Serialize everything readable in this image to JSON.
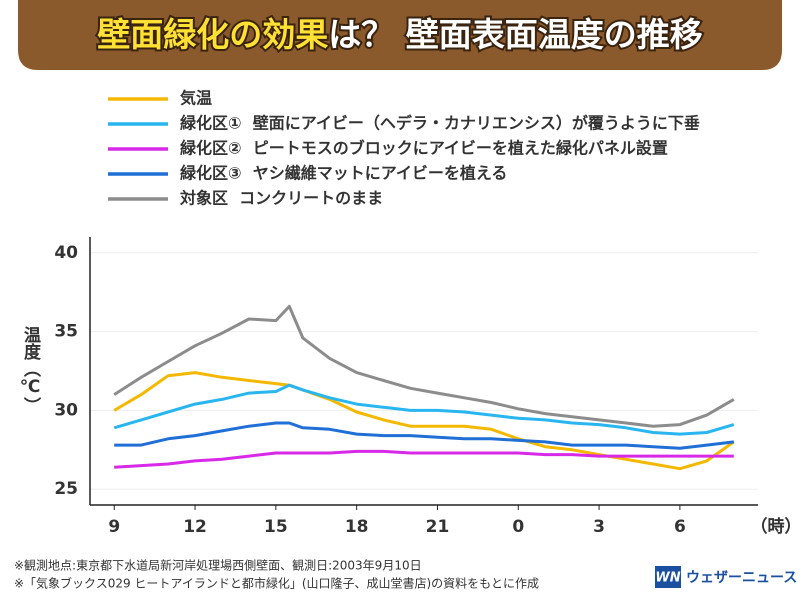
{
  "chart_data": {
    "type": "line",
    "title": {
      "highlight": "壁面緑化の効果",
      "rest": "は？ 壁面表面温度の推移"
    },
    "y_label": "温度（℃）",
    "x_unit": "（時）",
    "x": [
      9,
      10,
      11,
      12,
      13,
      14,
      15,
      15.5,
      16,
      17,
      18,
      19,
      20,
      21,
      22,
      23,
      24,
      25,
      26,
      27,
      28,
      29,
      30,
      31,
      32
    ],
    "xlim": [
      8.1,
      32.9
    ],
    "xticks": [
      9,
      12,
      15,
      18,
      21,
      {
        "value": 24,
        "label": "0"
      },
      {
        "value": 27,
        "label": "3"
      },
      {
        "value": 30,
        "label": "6"
      }
    ],
    "ylim": [
      24,
      41
    ],
    "yticks": [
      25,
      30,
      35,
      40
    ],
    "grid": true,
    "series": [
      {
        "name": "気温",
        "color": "#f5b800",
        "values": [
          30.0,
          31.0,
          32.2,
          32.4,
          32.1,
          31.9,
          31.7,
          31.6,
          31.3,
          30.7,
          29.9,
          29.4,
          29.0,
          29.0,
          29.0,
          28.8,
          28.2,
          27.7,
          27.5,
          27.2,
          26.9,
          26.6,
          26.3,
          26.8,
          28.0
        ]
      },
      {
        "name": "緑化区①  壁面にアイビー（ヘデラ・カナリエンシス）が覆うように下垂",
        "color": "#29b6f0",
        "values": [
          28.9,
          29.4,
          29.9,
          30.4,
          30.7,
          31.1,
          31.2,
          31.6,
          31.3,
          30.8,
          30.4,
          30.2,
          30.0,
          30.0,
          29.9,
          29.7,
          29.5,
          29.4,
          29.2,
          29.1,
          28.9,
          28.6,
          28.5,
          28.6,
          29.1
        ]
      },
      {
        "name": "緑化区②  ピートモスのブロックにアイビーを植えた緑化パネル設置",
        "color": "#d829e8",
        "values": [
          26.4,
          26.5,
          26.6,
          26.8,
          26.9,
          27.1,
          27.3,
          27.3,
          27.3,
          27.3,
          27.4,
          27.4,
          27.3,
          27.3,
          27.3,
          27.3,
          27.3,
          27.2,
          27.2,
          27.1,
          27.1,
          27.1,
          27.1,
          27.1,
          27.1
        ]
      },
      {
        "name": "緑化区③  ヤシ繊維マットにアイビーを植える",
        "color": "#1f6fd6",
        "values": [
          27.8,
          27.8,
          28.2,
          28.4,
          28.7,
          29.0,
          29.2,
          29.2,
          28.9,
          28.8,
          28.5,
          28.4,
          28.4,
          28.3,
          28.2,
          28.2,
          28.1,
          28.0,
          27.8,
          27.8,
          27.8,
          27.7,
          27.6,
          27.8,
          28.0
        ]
      },
      {
        "name": "対象区  コンクリートのまま",
        "color": "#8c8c8c",
        "values": [
          31.0,
          32.1,
          33.1,
          34.1,
          34.9,
          35.8,
          35.7,
          36.6,
          34.6,
          33.3,
          32.4,
          31.9,
          31.4,
          31.1,
          30.8,
          30.5,
          30.1,
          29.8,
          29.6,
          29.4,
          29.2,
          29.0,
          29.1,
          29.7,
          30.7
        ]
      }
    ],
    "notes": [
      "※観測地点:東京都下水道局新河岸処理場西側壁面、観測日:2003年9月10日",
      "※「気象ブックス029 ヒートアイランドと都市緑化」(山口隆子、成山堂書店)の資料をもとに作成"
    ],
    "logo": "ウェザーニュース"
  }
}
